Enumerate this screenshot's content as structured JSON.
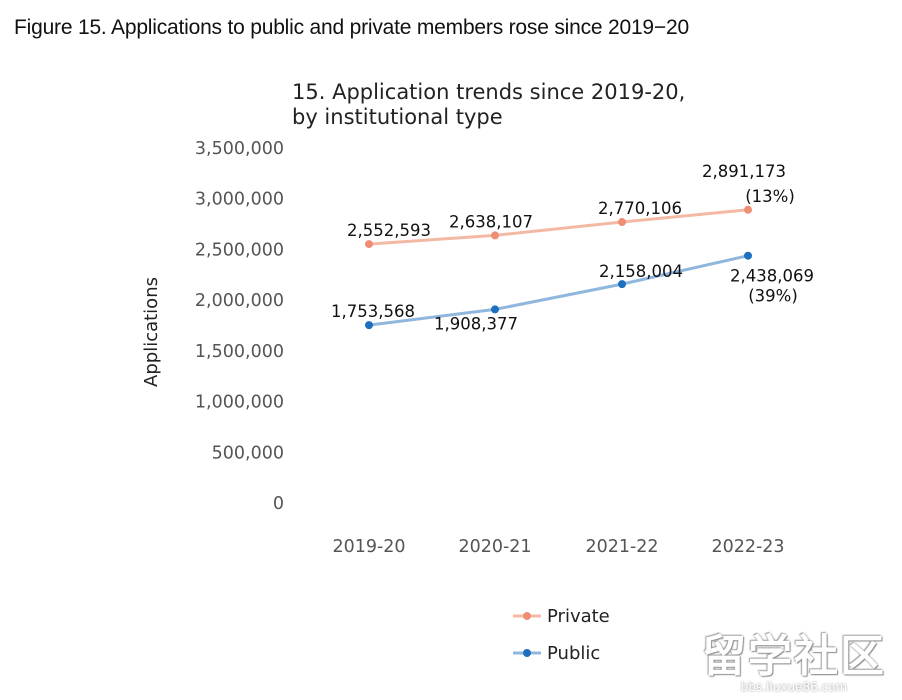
{
  "figure": {
    "heading": "Figure 15. Applications to public and private members rose since 2019−20"
  },
  "watermark": {
    "text": "留学社区",
    "url": "bbs.liuxue86.com"
  },
  "chart_data": {
    "type": "line",
    "title_lines": [
      "15. Application trends since 2019-20,",
      "by institutional type"
    ],
    "xlabel": "",
    "ylabel": "Applications",
    "categories": [
      "2019-20",
      "2020-21",
      "2021-22",
      "2022-23"
    ],
    "ylim": [
      0,
      3500000
    ],
    "yticks": [
      0,
      500000,
      1000000,
      1500000,
      2000000,
      2500000,
      3000000,
      3500000
    ],
    "ytick_labels": [
      "0",
      "500,000",
      "1,000,000",
      "1,500,000",
      "2,000,000",
      "2,500,000",
      "3,000,000",
      "3,500,000"
    ],
    "grid": false,
    "legend_position": "bottom",
    "series": [
      {
        "name": "Private",
        "color": "#f4b9a4",
        "marker_color": "#ee8f74",
        "values": [
          2552593,
          2638107,
          2770106,
          2891173
        ],
        "labels": [
          "2,552,593",
          "2,638,107",
          "2,770,106",
          "2,891,173"
        ],
        "annotation": "(13%)"
      },
      {
        "name": "Public",
        "color": "#8fb7dd",
        "marker_color": "#1f6fbf",
        "values": [
          1753568,
          1908377,
          2158004,
          2438069
        ],
        "labels": [
          "1,753,568",
          "1,908,377",
          "2,158,004",
          "2,438,069"
        ],
        "annotation": "(39%)"
      }
    ]
  }
}
